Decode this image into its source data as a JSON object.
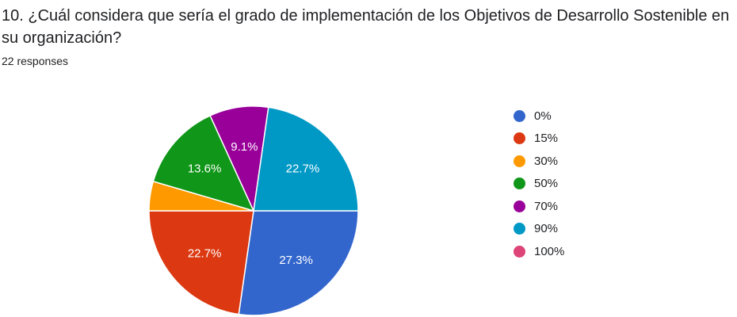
{
  "question": {
    "title": "10. ¿Cuál considera que sería el grado de implementación de los Objetivos de Desarrollo Sostenible en su organización?",
    "responses": "22 responses"
  },
  "chart_data": {
    "type": "pie",
    "title": "10. ¿Cuál considera que sería el grado de implementación de los Objetivos de Desarrollo Sostenible en su organización?",
    "total_responses": 22,
    "legend_position": "right",
    "slices": [
      {
        "label": "0%",
        "count": 6,
        "percent": 27.3,
        "display": "27.3%",
        "color": "#3366cc"
      },
      {
        "label": "15%",
        "count": 5,
        "percent": 22.7,
        "display": "22.7%",
        "color": "#dc3912"
      },
      {
        "label": "30%",
        "count": 1,
        "percent": 4.5,
        "display": "",
        "color": "#ff9900"
      },
      {
        "label": "50%",
        "count": 3,
        "percent": 13.6,
        "display": "13.6%",
        "color": "#109618"
      },
      {
        "label": "70%",
        "count": 2,
        "percent": 9.1,
        "display": "9.1%",
        "color": "#990099"
      },
      {
        "label": "90%",
        "count": 5,
        "percent": 22.7,
        "display": "22.7%",
        "color": "#0099c6"
      },
      {
        "label": "100%",
        "count": 0,
        "percent": 0,
        "display": "",
        "color": "#dd4477"
      }
    ]
  }
}
